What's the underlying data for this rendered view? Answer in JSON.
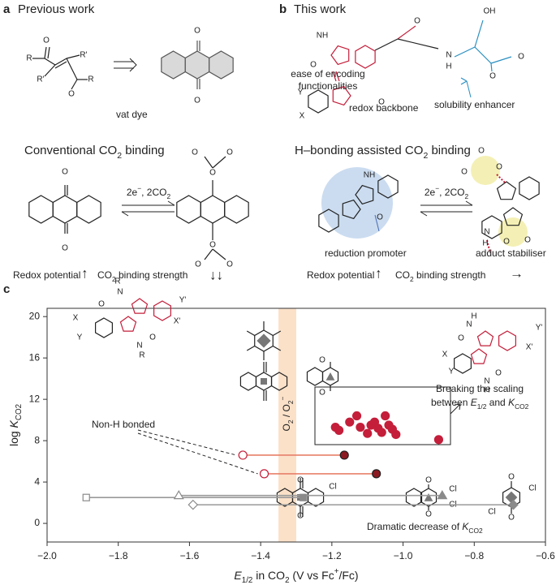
{
  "panel_a": {
    "letter": "a",
    "title": "Previous work",
    "caption": "vat dye",
    "subtitle": [
      "Conventional CO",
      {
        "sub": "2"
      },
      " binding"
    ],
    "arrow_label": [
      "2e",
      {
        "sup": "−"
      },
      ", 2CO",
      {
        "sub": "2"
      }
    ],
    "redox": "Redox potential",
    "redox_arrow": "↑",
    "binding": [
      "CO",
      {
        "sub": "2"
      },
      " binding strength"
    ],
    "binding_arrow": "↓↓"
  },
  "panel_b": {
    "letter": "b",
    "title": "This work",
    "encoding_1": "ease of encoding",
    "encoding_2": "functionalities",
    "solubility": "solubility enhancer",
    "backbone": "redox backbone",
    "subtitle": [
      "H–bonding assisted CO",
      {
        "sub": "2"
      },
      " binding"
    ],
    "arrow_label": [
      "2e",
      {
        "sup": "−"
      },
      ", 2CO",
      {
        "sub": "2"
      }
    ],
    "promoter": "reduction promoter",
    "stabiliser": "adduct stabiliser",
    "redox": "Redox potential",
    "redox_arrow": "↑",
    "binding": [
      "CO",
      {
        "sub": "2"
      },
      " binding strength"
    ],
    "binding_arrow": "→"
  },
  "panel_c": {
    "letter": "c"
  },
  "structure_labels": [
    "O",
    "R",
    "R'",
    "R'",
    "O",
    "R",
    "O",
    "O",
    "O",
    "O",
    "O",
    "O",
    "O",
    "O",
    "O",
    "O",
    "NH",
    "O",
    "Y",
    "X",
    "O",
    "O",
    "N",
    "H",
    "OH",
    "O",
    "O",
    "NH",
    "O",
    "O",
    "O",
    "O",
    "N",
    "H",
    "O",
    "O",
    "O",
    "O",
    "R",
    "N",
    "O",
    "Y'",
    "X'",
    "X",
    "Y",
    "O",
    "N",
    "R",
    "O",
    "N",
    "H",
    "Y'",
    "X'",
    "X",
    "Y",
    "O",
    "N",
    "H",
    "O",
    "O",
    "Cl",
    "O",
    "O",
    "Cl",
    "Cl",
    "O",
    "O",
    "Cl",
    "Cl"
  ],
  "chart_data": {
    "type": "scatter",
    "xlabel": [
      {
        "i": "E"
      },
      {
        "sub": "1/2"
      },
      " in CO",
      {
        "sub": "2"
      },
      " (V vs Fc",
      {
        "sup": "+"
      },
      "/Fc)"
    ],
    "ylabel": [
      "log ",
      {
        "i": "K"
      },
      {
        "sub": "CO2"
      }
    ],
    "xlim": [
      -2.0,
      -0.6
    ],
    "ylim": [
      -1.8,
      20.8
    ],
    "xticks": [
      {
        "value": -2.0,
        "label": "−2.0"
      },
      {
        "value": -1.8,
        "label": "−1.8"
      },
      {
        "value": -1.6,
        "label": "−1.6"
      },
      {
        "value": -1.4,
        "label": "−1.4"
      },
      {
        "value": -1.2,
        "label": "−1.2"
      },
      {
        "value": -1.0,
        "label": "−1.0"
      },
      {
        "value": -0.8,
        "label": "−0.8"
      },
      {
        "value": -0.6,
        "label": "−0.6"
      }
    ],
    "yticks": [
      0,
      4,
      8,
      12,
      16,
      20
    ],
    "band": {
      "x": [
        -1.35,
        -1.3
      ],
      "color": "#fbe1c8",
      "label": [
        "O",
        {
          "sub": "2"
        },
        " / O",
        {
          "sub": "2"
        },
        {
          "sup": "−"
        }
      ]
    },
    "series": [
      {
        "color": "#c41e3a",
        "marker": "circle",
        "filled": true,
        "x": [
          -1.19,
          -1.18,
          -1.15,
          -1.13,
          -1.12,
          -1.1,
          -1.09,
          -1.08,
          -1.07,
          -1.06,
          -1.05,
          -1.04,
          -1.03,
          -1.02,
          -0.9
        ],
        "values": [
          9.3,
          9.0,
          9.8,
          10.4,
          9.3,
          8.7,
          9.5,
          9.8,
          9.2,
          8.8,
          10.4,
          9.5,
          9.1,
          8.6,
          8.1
        ]
      },
      {
        "color": "#c41e3a",
        "marker": "circle",
        "filled": false,
        "connect": 2,
        "line_color": "#e8806a",
        "x": [
          -1.45,
          -1.39
        ],
        "values": [
          6.6,
          4.8
        ]
      },
      {
        "color": "#8b1a22",
        "marker": "circle",
        "filled": true,
        "edge": "#222",
        "x": [
          -1.165,
          -1.075
        ],
        "values": [
          6.6,
          4.8
        ]
      },
      {
        "color": "#8a8a8a",
        "markers": [
          "square",
          "triangle",
          "diamond"
        ],
        "filled": false,
        "connect": 4,
        "line_color": "#9a9a9a",
        "x": [
          -1.89,
          -1.63,
          -1.59
        ],
        "values": [
          2.5,
          2.7,
          1.8
        ]
      },
      {
        "color": "#8a8a8a",
        "markers": [
          "square",
          "triangle",
          "diamond"
        ],
        "filled": true,
        "x": [
          -1.28,
          -0.89,
          -0.69
        ],
        "values": [
          2.5,
          2.7,
          1.8
        ]
      }
    ],
    "annotations": {
      "non_h": "Non-H bonded",
      "breaking_1": "Breaking the scaling",
      "breaking_2": [
        "between ",
        {
          "i": "E"
        },
        {
          "sub": "1/2"
        },
        " and ",
        {
          "i": "K"
        },
        {
          "sub": "CO2"
        }
      ],
      "dramatic": [
        "Dramatic decrease of ",
        {
          "i": "K"
        },
        {
          "sub": "CO2"
        }
      ]
    }
  }
}
